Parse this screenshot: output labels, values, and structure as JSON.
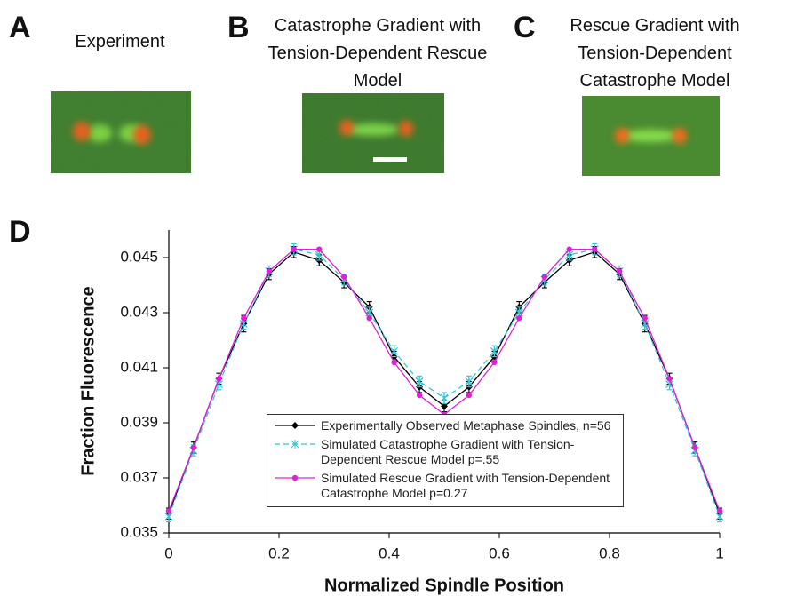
{
  "panels": [
    {
      "label": "A",
      "title": "Experiment"
    },
    {
      "label": "B",
      "title": "Catastrophe Gradient with Tension-Dependent Rescue Model"
    },
    {
      "label": "C",
      "title": "Rescue Gradient with Tension-Dependent Catastrophe Model"
    }
  ],
  "chart_data": {
    "type": "line",
    "panel_label": "D",
    "xlabel": "Normalized Spindle Position",
    "ylabel": "Fraction Fluorescence",
    "x": [
      0,
      0.045,
      0.091,
      0.136,
      0.182,
      0.227,
      0.273,
      0.318,
      0.364,
      0.409,
      0.455,
      0.5,
      0.545,
      0.591,
      0.636,
      0.682,
      0.727,
      0.773,
      0.818,
      0.864,
      0.909,
      0.955,
      1
    ],
    "xlim": [
      0,
      1
    ],
    "xticks": [
      0,
      0.2,
      0.4,
      0.6,
      0.8,
      1
    ],
    "ylim": [
      0.035,
      0.046
    ],
    "yticks": [
      0.035,
      0.037,
      0.039,
      0.041,
      0.043,
      0.045
    ],
    "series": [
      {
        "name": "Experimentally Observed Metaphase Spindles, n=56",
        "color": "#000000",
        "marker": "diamond",
        "dash": false,
        "values": [
          0.0357,
          0.0381,
          0.0406,
          0.0426,
          0.0444,
          0.0452,
          0.0449,
          0.0441,
          0.0432,
          0.0414,
          0.0403,
          0.0396,
          0.0403,
          0.0414,
          0.0432,
          0.0441,
          0.0449,
          0.0452,
          0.0444,
          0.0426,
          0.0406,
          0.0381,
          0.0357
        ],
        "errors": [
          0.0002,
          0.0002,
          0.0002,
          0.0003,
          0.0002,
          0.0002,
          0.0002,
          0.0002,
          0.0002,
          0.0002,
          0.0002,
          0.0002,
          0.0002,
          0.0002,
          0.0002,
          0.0002,
          0.0002,
          0.0002,
          0.0002,
          0.0003,
          0.0002,
          0.0002,
          0.0002
        ]
      },
      {
        "name": "Simulated Catastrophe Gradient with Tension-Dependent Rescue Model  p=.55",
        "color": "#33c6d8",
        "marker": "star",
        "dash": true,
        "values": [
          0.0356,
          0.038,
          0.0404,
          0.0426,
          0.0445,
          0.0453,
          0.0451,
          0.0442,
          0.043,
          0.0416,
          0.0405,
          0.0399,
          0.0405,
          0.0416,
          0.043,
          0.0442,
          0.0451,
          0.0453,
          0.0445,
          0.0426,
          0.0404,
          0.038,
          0.0356
        ],
        "errors": [
          0.0002,
          0.0002,
          0.0002,
          0.0002,
          0.0002,
          0.0002,
          0.0002,
          0.0002,
          0.0002,
          0.0002,
          0.0002,
          0.0002,
          0.0002,
          0.0002,
          0.0002,
          0.0002,
          0.0002,
          0.0002,
          0.0002,
          0.0002,
          0.0002,
          0.0002,
          0.0002
        ]
      },
      {
        "name": "Simulated Rescue Gradient with Tension-Dependent Catastrophe Model p=0.27",
        "color": "#e020d8",
        "marker": "circle",
        "dash": false,
        "values": [
          0.0358,
          0.0381,
          0.0406,
          0.0428,
          0.0445,
          0.0453,
          0.0453,
          0.0443,
          0.0428,
          0.0412,
          0.04,
          0.0393,
          0.04,
          0.0412,
          0.0428,
          0.0443,
          0.0453,
          0.0453,
          0.0445,
          0.0428,
          0.0406,
          0.0381,
          0.0358
        ]
      }
    ]
  }
}
